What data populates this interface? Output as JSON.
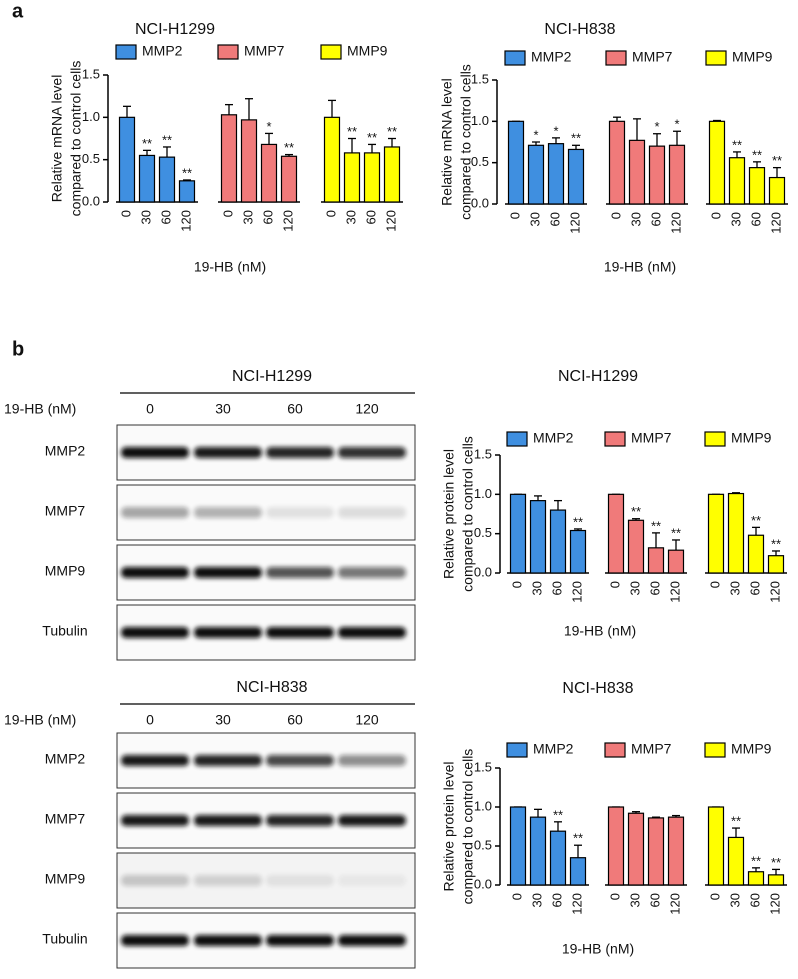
{
  "panel_labels": [
    "a",
    "b"
  ],
  "chart_data": [
    {
      "type": "bar",
      "title": "NCI-H1299",
      "ylabel": [
        "Relative mRNA level",
        "compared to control cells"
      ],
      "xlabel": "19-HB (nM)",
      "categories": [
        "0",
        "30",
        "60",
        "120"
      ],
      "ylim": [
        0,
        1.5
      ],
      "yticks": [
        {
          "value": 0,
          "label": "0.0"
        },
        0.5,
        {
          "value": 1,
          "label": "1.0"
        },
        1.5
      ],
      "series": [
        {
          "name": "MMP2",
          "color": "#3f8fe0",
          "values": [
            1.0,
            0.55,
            0.53,
            0.25
          ],
          "errors": [
            0.13,
            0.06,
            0.12,
            0.01
          ],
          "significance": [
            null,
            "**",
            "**",
            "**"
          ]
        },
        {
          "name": "MMP7",
          "color": "#f07a7a",
          "values": [
            1.03,
            0.97,
            0.68,
            0.54
          ],
          "errors": [
            0.12,
            0.25,
            0.13,
            0.02
          ],
          "significance": [
            null,
            null,
            "*",
            "**"
          ]
        },
        {
          "name": "MMP9",
          "color": "#ffff00",
          "values": [
            1.0,
            0.58,
            0.58,
            0.65
          ],
          "errors": [
            0.2,
            0.17,
            0.1,
            0.1
          ],
          "significance": [
            null,
            "**",
            "**",
            "**"
          ]
        }
      ]
    },
    {
      "type": "bar",
      "title": "NCI-H838",
      "ylabel": [
        "Relative mRNA level",
        "compared to control cells"
      ],
      "xlabel": "19-HB (nM)",
      "categories": [
        "0",
        "30",
        "60",
        "120"
      ],
      "ylim": [
        0,
        1.5
      ],
      "yticks": [
        {
          "value": 0,
          "label": "0.0"
        },
        0.5,
        {
          "value": 1,
          "label": "1.0"
        },
        1.5
      ],
      "series": [
        {
          "name": "MMP2",
          "color": "#3f8fe0",
          "values": [
            1.0,
            0.71,
            0.73,
            0.66
          ],
          "errors": [
            0,
            0.04,
            0.07,
            0.05
          ],
          "significance": [
            null,
            "*",
            "*",
            "**"
          ]
        },
        {
          "name": "MMP7",
          "color": "#f07a7a",
          "values": [
            1.0,
            0.77,
            0.7,
            0.71
          ],
          "errors": [
            0.05,
            0.26,
            0.15,
            0.17
          ],
          "significance": [
            null,
            null,
            "*",
            "*"
          ]
        },
        {
          "name": "MMP9",
          "color": "#ffff00",
          "values": [
            1.0,
            0.56,
            0.44,
            0.32
          ],
          "errors": [
            0.01,
            0.07,
            0.07,
            0.12
          ],
          "significance": [
            null,
            "**",
            "**",
            "**"
          ]
        }
      ]
    },
    {
      "type": "bar",
      "title": "NCI-H1299",
      "ylabel": [
        "Relative protein level",
        "compared to control cells"
      ],
      "xlabel": "19-HB (nM)",
      "categories": [
        "0",
        "30",
        "60",
        "120"
      ],
      "ylim": [
        0,
        1.5
      ],
      "yticks": [
        {
          "value": 0,
          "label": "0.0"
        },
        0.5,
        {
          "value": 1,
          "label": "1.0"
        },
        1.5
      ],
      "series": [
        {
          "name": "MMP2",
          "color": "#3f8fe0",
          "values": [
            1.0,
            0.92,
            0.8,
            0.54
          ],
          "errors": [
            0,
            0.06,
            0.12,
            0.02
          ],
          "significance": [
            null,
            null,
            null,
            "**"
          ]
        },
        {
          "name": "MMP7",
          "color": "#f07a7a",
          "values": [
            1.0,
            0.67,
            0.32,
            0.29
          ],
          "errors": [
            0,
            0.02,
            0.19,
            0.13
          ],
          "significance": [
            null,
            "**",
            "**",
            "**"
          ]
        },
        {
          "name": "MMP9",
          "color": "#ffff00",
          "values": [
            1.0,
            1.01,
            0.48,
            0.22
          ],
          "errors": [
            0,
            0.01,
            0.1,
            0.06
          ],
          "significance": [
            null,
            null,
            "**",
            "**"
          ]
        }
      ]
    },
    {
      "type": "bar",
      "title": "NCI-H838",
      "ylabel": [
        "Relative protein level",
        "compared to control cells"
      ],
      "xlabel": "19-HB (nM)",
      "categories": [
        "0",
        "30",
        "60",
        "120"
      ],
      "ylim": [
        0,
        1.5
      ],
      "yticks": [
        {
          "value": 0,
          "label": "0.0"
        },
        0.5,
        {
          "value": 1,
          "label": "1.0"
        },
        1.5
      ],
      "series": [
        {
          "name": "MMP2",
          "color": "#3f8fe0",
          "values": [
            1.0,
            0.87,
            0.69,
            0.35
          ],
          "errors": [
            0,
            0.1,
            0.12,
            0.16
          ],
          "significance": [
            null,
            null,
            "**",
            "**"
          ]
        },
        {
          "name": "MMP7",
          "color": "#f07a7a",
          "values": [
            1.0,
            0.92,
            0.86,
            0.87
          ],
          "errors": [
            0,
            0.02,
            0.01,
            0.02
          ],
          "significance": [
            null,
            null,
            null,
            null
          ]
        },
        {
          "name": "MMP9",
          "color": "#ffff00",
          "values": [
            1.0,
            0.61,
            0.17,
            0.13
          ],
          "errors": [
            0,
            0.12,
            0.05,
            0.07
          ],
          "significance": [
            null,
            "**",
            "**",
            "**"
          ]
        }
      ]
    }
  ],
  "blots": [
    {
      "title": "NCI-H1299",
      "dose_label": "19-HB (nM)",
      "doses": [
        "0",
        "30",
        "60",
        "120"
      ],
      "rows": [
        "MMP2",
        "MMP7",
        "MMP9",
        "Tubulin"
      ]
    },
    {
      "title": "NCI-H838",
      "dose_label": "19-HB (nM)",
      "doses": [
        "0",
        "30",
        "60",
        "120"
      ],
      "rows": [
        "MMP2",
        "MMP7",
        "MMP9",
        "Tubulin"
      ]
    }
  ]
}
